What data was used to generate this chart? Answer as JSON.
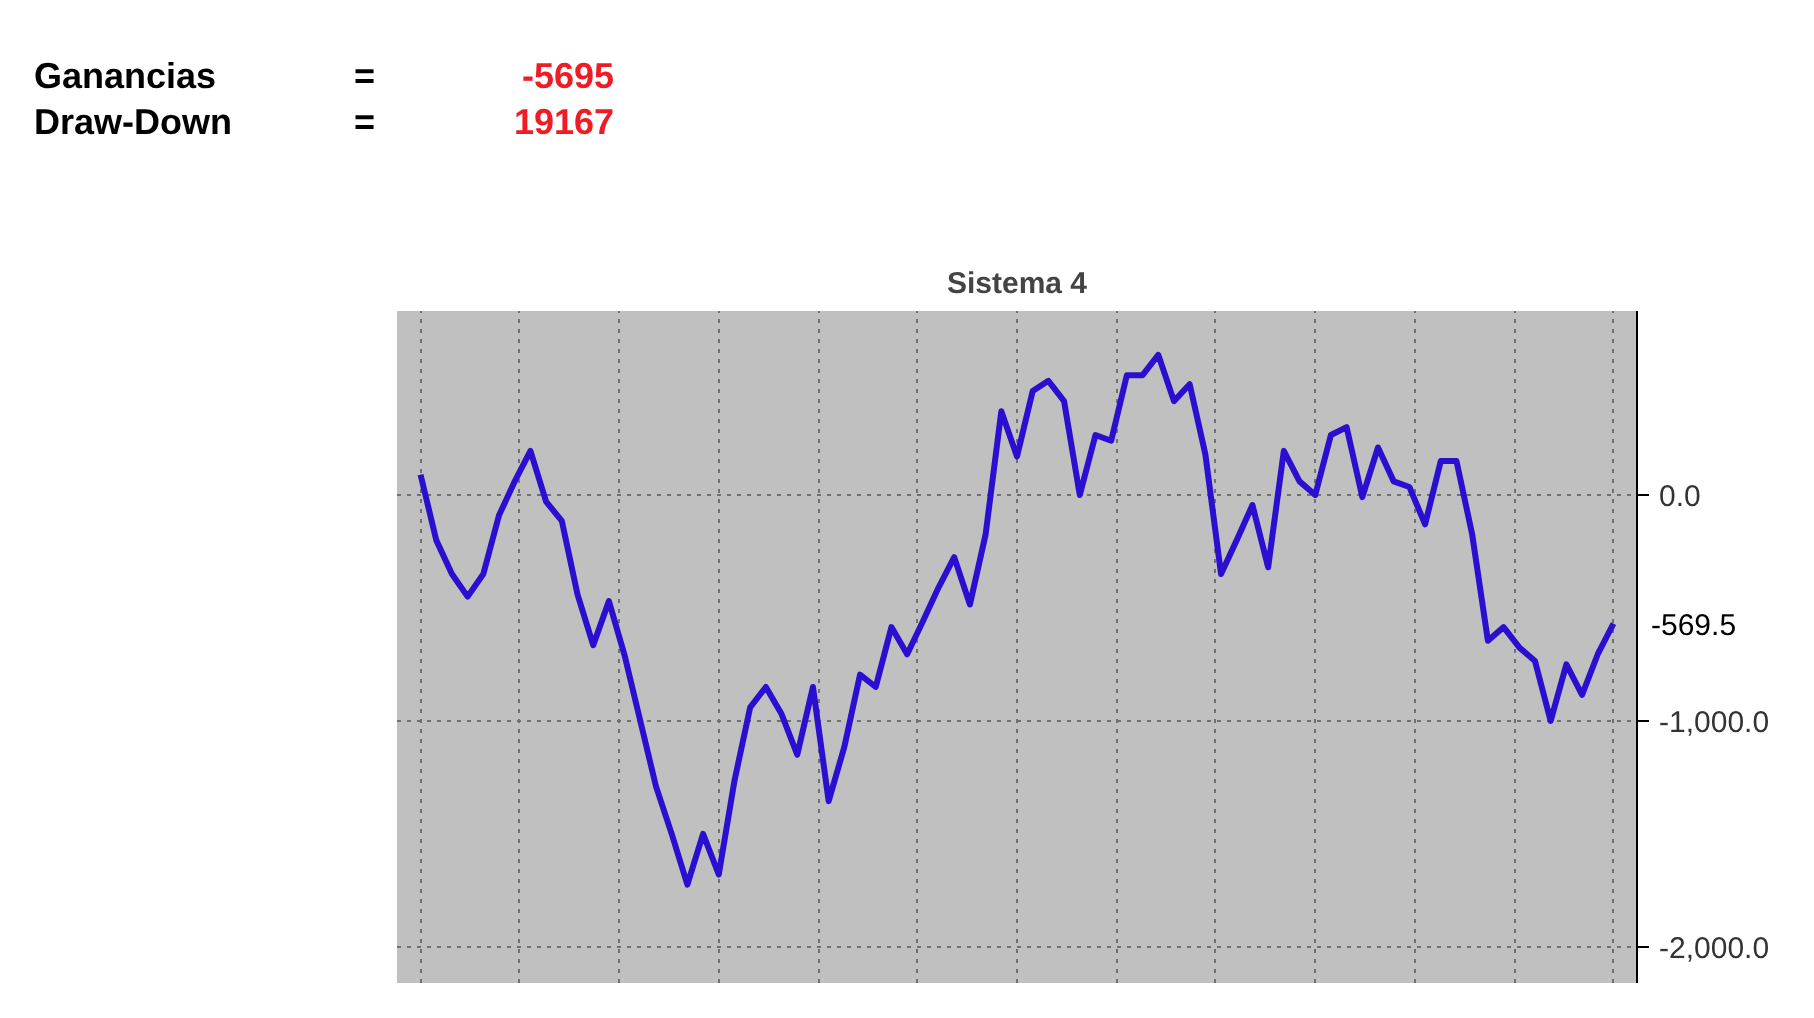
{
  "chart_data": {
    "type": "line",
    "title": "Sistema 4",
    "annotations": [
      "Ganancias",
      "=",
      "-5695",
      "Draw-Down",
      "=",
      "19167",
      "-569.5"
    ],
    "categories": [
      null,
      null,
      null,
      null,
      null,
      null,
      null,
      null,
      null,
      null,
      null,
      null,
      null,
      null,
      null,
      null,
      null,
      null,
      null,
      null,
      null,
      null,
      null,
      null,
      null,
      null,
      null,
      null,
      null,
      null,
      null,
      null,
      null,
      null,
      null,
      null,
      null,
      null,
      null,
      null,
      null,
      null,
      null,
      null,
      null,
      null,
      null,
      null,
      null,
      null,
      null,
      null,
      null,
      null,
      null,
      null,
      null,
      null,
      null,
      null,
      null,
      null,
      null,
      null,
      null,
      null,
      null,
      null,
      null,
      null,
      null,
      null,
      null,
      null,
      null,
      null,
      null
    ],
    "series": [
      {
        "color": "#2a0fd0",
        "values": [
          90,
          -200,
          -350,
          -450,
          -350,
          -90,
          60,
          195,
          -30,
          -115,
          -440,
          -665,
          -470,
          -710,
          -1000,
          -1290,
          -1500,
          -1725,
          -1500,
          -1680,
          -1265,
          -940,
          -850,
          -970,
          -1150,
          -850,
          -1355,
          -1115,
          -795,
          -850,
          -585,
          -705,
          -560,
          -410,
          -275,
          -485,
          -175,
          370,
          170,
          460,
          505,
          415,
          0,
          265,
          240,
          530,
          530,
          620,
          415,
          490,
          180,
          -350,
          -200,
          -45,
          -320,
          195,
          60,
          0,
          265,
          300,
          -10,
          210,
          60,
          35,
          -130,
          150,
          150,
          -175,
          -645,
          -585,
          -675,
          -735,
          -1000,
          -750,
          -885,
          -705,
          -569.5
        ]
      }
    ],
    "ylim": [
      -2160,
      814
    ],
    "yticks": [
      {
        "value": 0,
        "label": "0.0"
      },
      {
        "value": -1000,
        "label": "-1,000.0"
      },
      {
        "value": -2000,
        "label": "-2,000.0"
      }
    ],
    "tick_labels": "y",
    "grid": true,
    "marker": "none",
    "line_style": "solid"
  }
}
